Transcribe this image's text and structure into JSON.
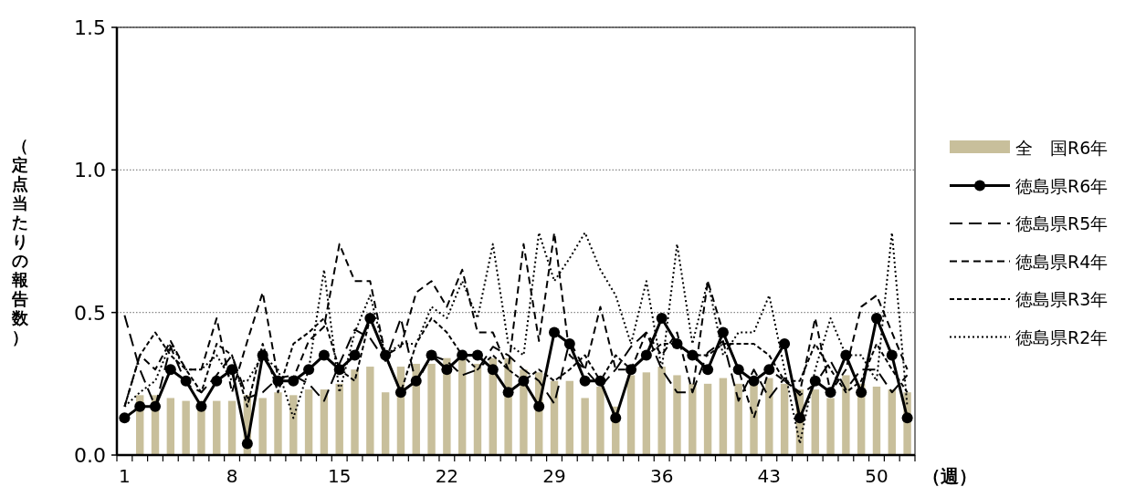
{
  "chart_data": {
    "type": "line",
    "ylabel": "（定点当たりの報告数）",
    "xlabel": "（週）",
    "categories": [
      "1",
      null,
      null,
      null,
      null,
      null,
      null,
      "8",
      null,
      null,
      null,
      null,
      null,
      null,
      "15",
      null,
      null,
      null,
      null,
      null,
      null,
      "22",
      null,
      null,
      null,
      null,
      null,
      null,
      "29",
      null,
      null,
      null,
      null,
      null,
      null,
      "36",
      null,
      null,
      null,
      null,
      null,
      null,
      "43",
      null,
      null,
      null,
      null,
      null,
      null,
      "50",
      null,
      null
    ],
    "ylim": [
      0,
      1.5
    ],
    "yticks": [
      {
        "value": 0,
        "label": "0.0"
      },
      {
        "value": 0.5,
        "label": "0.5"
      },
      {
        "value": 1,
        "label": "1.0"
      },
      {
        "value": 1.5,
        "label": "1.5"
      }
    ],
    "grid": "y",
    "legend": "right",
    "series": [
      {
        "name": "全　国R6年",
        "type": "bar",
        "color": "#c8bf9b",
        "values": [
          null,
          0.21,
          0.21,
          0.2,
          0.19,
          0.19,
          0.19,
          0.19,
          0.21,
          0.2,
          0.22,
          0.21,
          0.23,
          0.23,
          0.25,
          0.3,
          0.31,
          0.22,
          0.31,
          0.32,
          0.32,
          0.34,
          0.34,
          0.32,
          0.34,
          0.34,
          0.3,
          0.29,
          0.26,
          0.26,
          0.2,
          0.24,
          0.17,
          0.28,
          0.29,
          0.31,
          0.28,
          0.25,
          0.25,
          0.27,
          0.25,
          0.25,
          0.27,
          0.25,
          0.23,
          0.23,
          0.2,
          0.28,
          0.25,
          0.24,
          0.23,
          0.22
        ]
      },
      {
        "name": "徳島県R6年",
        "color": "#000000",
        "marker": "circle",
        "line_style": "solid",
        "values": [
          0.13,
          0.17,
          0.17,
          0.3,
          0.26,
          0.17,
          0.26,
          0.3,
          0.04,
          0.35,
          0.26,
          0.26,
          0.3,
          0.35,
          0.3,
          0.35,
          0.48,
          0.35,
          0.22,
          0.26,
          0.35,
          0.3,
          0.35,
          0.35,
          0.3,
          0.22,
          0.26,
          0.17,
          0.43,
          0.39,
          0.26,
          0.26,
          0.13,
          0.3,
          0.35,
          0.48,
          0.39,
          0.35,
          0.3,
          0.43,
          0.3,
          0.26,
          0.3,
          0.39,
          0.13,
          0.26,
          0.22,
          0.35,
          0.22,
          0.48,
          0.35,
          0.13
        ]
      },
      {
        "name": "徳島県R5年",
        "color": "#000000",
        "line_style": "dashed",
        "values": [
          0.49,
          0.3,
          0.17,
          0.38,
          0.25,
          0.22,
          0.28,
          0.35,
          0.2,
          0.22,
          0.27,
          0.28,
          0.25,
          0.19,
          0.32,
          0.44,
          0.41,
          0.33,
          0.48,
          0.25,
          0.35,
          0.33,
          0.28,
          0.3,
          0.38,
          0.35,
          0.3,
          0.26,
          0.18,
          0.4,
          0.3,
          0.24,
          0.3,
          0.38,
          0.43,
          0.3,
          0.22,
          0.22,
          0.36,
          0.4,
          0.19,
          0.3,
          0.2,
          0.27,
          0.21,
          0.25,
          0.33,
          0.23,
          0.3,
          0.3,
          0.22,
          0.28
        ]
      },
      {
        "name": "徳島県R4年",
        "color": "#000000",
        "line_style": "dashed",
        "values": [
          0.17,
          0.35,
          0.3,
          0.4,
          0.3,
          0.3,
          0.48,
          0.22,
          0.4,
          0.57,
          0.27,
          0.27,
          0.4,
          0.45,
          0.74,
          0.61,
          0.61,
          0.35,
          0.38,
          0.57,
          0.61,
          0.52,
          0.65,
          0.43,
          0.43,
          0.3,
          0.74,
          0.4,
          0.78,
          0.35,
          0.3,
          0.52,
          0.3,
          0.3,
          0.43,
          0.35,
          0.43,
          0.22,
          0.61,
          0.43,
          0.3,
          0.13,
          0.3,
          0.26,
          0.22,
          0.48,
          0.22,
          0.3,
          0.52,
          0.56,
          0.43,
          0.3
        ]
      },
      {
        "name": "徳島県R3年",
        "color": "#000000",
        "line_style": "dashed",
        "values": [
          0.17,
          0.35,
          0.43,
          0.35,
          0.3,
          0.22,
          0.39,
          0.35,
          0.17,
          0.39,
          0.22,
          0.39,
          0.43,
          0.48,
          0.3,
          0.26,
          0.48,
          0.35,
          0.22,
          0.39,
          0.48,
          0.43,
          0.35,
          0.3,
          0.35,
          0.3,
          0.26,
          0.3,
          0.26,
          0.3,
          0.35,
          0.26,
          0.35,
          0.3,
          0.35,
          0.39,
          0.39,
          0.35,
          0.35,
          0.39,
          0.39,
          0.39,
          0.35,
          0.26,
          0.26,
          0.39,
          0.3,
          0.22,
          0.26,
          0.39,
          0.3,
          0.22
        ]
      },
      {
        "name": "徳島県R2年",
        "color": "#000000",
        "line_style": "dotted",
        "values": [
          0.17,
          0.22,
          0.26,
          0.39,
          0.3,
          0.3,
          0.35,
          0.26,
          0.26,
          0.35,
          0.3,
          0.13,
          0.3,
          0.65,
          0.22,
          0.43,
          0.56,
          0.35,
          0.39,
          0.39,
          0.52,
          0.48,
          0.61,
          0.48,
          0.74,
          0.39,
          0.35,
          0.78,
          0.61,
          0.69,
          0.78,
          0.65,
          0.56,
          0.39,
          0.61,
          0.3,
          0.74,
          0.39,
          0.61,
          0.35,
          0.43,
          0.43,
          0.56,
          0.3,
          0.04,
          0.3,
          0.48,
          0.35,
          0.35,
          0.26,
          0.78,
          0.17
        ]
      }
    ]
  }
}
